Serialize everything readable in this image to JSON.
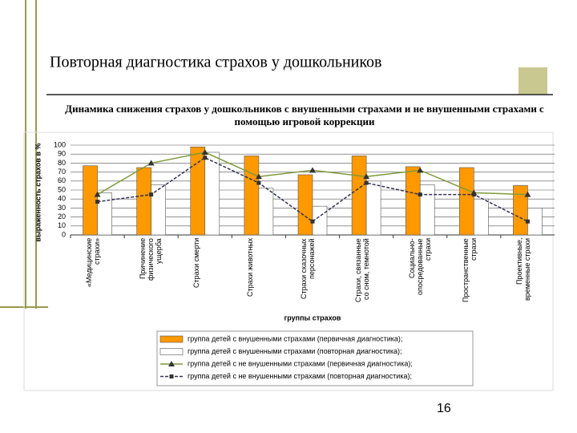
{
  "slide_title": "Повторная диагностика страхов у дошкольников",
  "page_number": "16",
  "chart_data": {
    "type": "bar",
    "title": "Динамика снижения страхов у дошкольников с внушенными страхами и не внушенными страхами с помощью игровой коррекции",
    "x_label": "группы страхов",
    "y_label": "выраженность страхов в %",
    "categories": [
      "«Медицинские страхи»",
      "Причинение физического ущерба",
      "Страхи смерти",
      "Страхи животных",
      "Страхи сказочных персонажей",
      "Страхи, связанные со сном, темнотой",
      "Социально-опосредованные страхи",
      "Пространственные страхи",
      "Проективные, временные страхи"
    ],
    "series": [
      {
        "name": "группа детей с внушенными страхами (первичная диагностика);",
        "type": "bar",
        "color": "#ff9900",
        "values": [
          77,
          75,
          98,
          88,
          67,
          88,
          76,
          75,
          55
        ]
      },
      {
        "name": "группа детей с внушенными страхами (повторная диагностика);",
        "type": "bar",
        "color": "#ffffff",
        "values": [
          47,
          56,
          92,
          52,
          32,
          60,
          56,
          40,
          30
        ]
      },
      {
        "name": "группа детей с не внушенными страхами (первичная диагностика);",
        "type": "line",
        "marker": "triangle",
        "color": "#7f9a3a",
        "values": [
          45,
          80,
          92,
          65,
          72,
          65,
          72,
          47,
          45
        ]
      },
      {
        "name": "группа детей с не внушенными страхами (повторная диагностика);",
        "type": "line",
        "marker": "square",
        "dash": true,
        "color": "#333355",
        "values": [
          37,
          45,
          86,
          58,
          15,
          58,
          45,
          45,
          15
        ]
      }
    ],
    "ylim": [
      0,
      100
    ],
    "yticks": [
      0,
      10,
      20,
      30,
      40,
      50,
      60,
      70,
      80,
      90,
      100
    ],
    "grid": true
  }
}
